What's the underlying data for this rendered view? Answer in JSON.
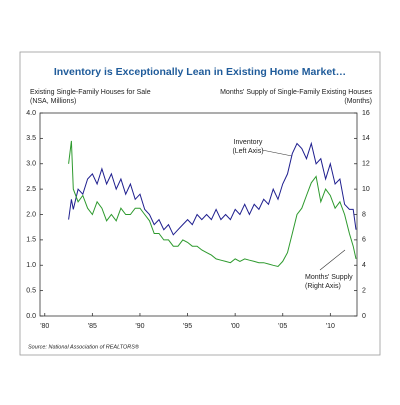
{
  "chart_data": {
    "type": "line",
    "title": "Inventory is Exceptionally Lean in Existing Home Market…",
    "ylabel": [
      "Existing Single-Family Houses for Sale",
      "(NSA, Millions)"
    ],
    "y2label": [
      "Months' Supply of Single-Family Existing Houses",
      "(Months)"
    ],
    "source": "Source: National Association of REALTORS®",
    "annotations": [
      "Inventory",
      "(Left Axis)",
      "Months' Supply",
      "(Right Axis)"
    ],
    "x": [
      1982.5,
      1982.8,
      1983,
      1983.5,
      1984,
      1984.5,
      1985,
      1985.5,
      1986,
      1986.5,
      1987,
      1987.5,
      1988,
      1988.5,
      1989,
      1989.5,
      1990,
      1990.5,
      1991,
      1991.5,
      1992,
      1992.5,
      1993,
      1993.5,
      1994,
      1994.5,
      1995,
      1995.5,
      1996,
      1996.5,
      1997,
      1997.5,
      1998,
      1998.5,
      1999,
      1999.5,
      2000,
      2000.5,
      2001,
      2001.5,
      2002,
      2002.5,
      2003,
      2003.5,
      2004,
      2004.5,
      2005,
      2005.5,
      2006,
      2006.5,
      2007,
      2007.5,
      2008,
      2008.5,
      2009,
      2009.5,
      2010,
      2010.5,
      2011,
      2011.5,
      2012,
      2012.4,
      2012.7
    ],
    "xlim": [
      1979.5,
      2012.8
    ],
    "xticks": [
      {
        "value": 1980,
        "label": "'80"
      },
      {
        "value": 1985,
        "label": "'85"
      },
      {
        "value": 1990,
        "label": "'90"
      },
      {
        "value": 1995,
        "label": "'95"
      },
      {
        "value": 2000,
        "label": "'00"
      },
      {
        "value": 2005,
        "label": "'05"
      },
      {
        "value": 2010,
        "label": "'10"
      }
    ],
    "ylim": [
      0,
      4
    ],
    "yticks": [
      {
        "value": 0,
        "label": "0.0"
      },
      {
        "value": 0.5,
        "label": "0.5"
      },
      {
        "value": 1,
        "label": "1.0"
      },
      {
        "value": 1.5,
        "label": "1.5"
      },
      {
        "value": 2,
        "label": "2.0"
      },
      {
        "value": 2.5,
        "label": "2.5"
      },
      {
        "value": 3,
        "label": "3.0"
      },
      {
        "value": 3.5,
        "label": "3.5"
      },
      {
        "value": 4,
        "label": "4.0"
      }
    ],
    "y2lim": [
      0,
      16
    ],
    "y2ticks": [
      0,
      2,
      4,
      6,
      8,
      10,
      12,
      14,
      16
    ],
    "series": [
      {
        "name": "Inventory",
        "color": "#1f1f8f",
        "values": [
          1.9,
          2.3,
          2.1,
          2.5,
          2.4,
          2.7,
          2.8,
          2.6,
          2.9,
          2.6,
          2.8,
          2.5,
          2.7,
          2.4,
          2.6,
          2.3,
          2.4,
          2.1,
          2.0,
          1.8,
          1.9,
          1.7,
          1.8,
          1.6,
          1.7,
          1.8,
          1.9,
          1.8,
          2.0,
          1.9,
          2.0,
          1.9,
          2.1,
          1.9,
          2.0,
          1.9,
          2.1,
          2.0,
          2.2,
          2.0,
          2.2,
          2.1,
          2.3,
          2.2,
          2.5,
          2.3,
          2.6,
          2.8,
          3.2,
          3.4,
          3.3,
          3.1,
          3.4,
          3.0,
          3.1,
          2.7,
          3.0,
          2.6,
          2.7,
          2.2,
          2.1,
          2.1,
          1.7
        ]
      },
      {
        "name": "Months' Supply",
        "color": "#2e9a2e",
        "axis": "y2",
        "values": [
          12,
          13.8,
          10,
          9,
          9.5,
          8.5,
          8,
          9,
          8.5,
          7.5,
          8,
          7.5,
          8.5,
          8,
          8,
          8.5,
          8.5,
          8,
          7.5,
          6.5,
          6.5,
          6,
          6,
          5.5,
          5.5,
          6,
          5.8,
          5.5,
          5.5,
          5.2,
          5,
          4.8,
          4.5,
          4.4,
          4.3,
          4.2,
          4.5,
          4.3,
          4.5,
          4.4,
          4.3,
          4.2,
          4.2,
          4.1,
          4.0,
          3.9,
          4.3,
          5,
          6.5,
          8,
          8.5,
          9.5,
          10.5,
          11,
          9,
          10,
          9.5,
          8.5,
          9,
          8,
          6.5,
          5.5,
          4.5
        ]
      }
    ]
  }
}
